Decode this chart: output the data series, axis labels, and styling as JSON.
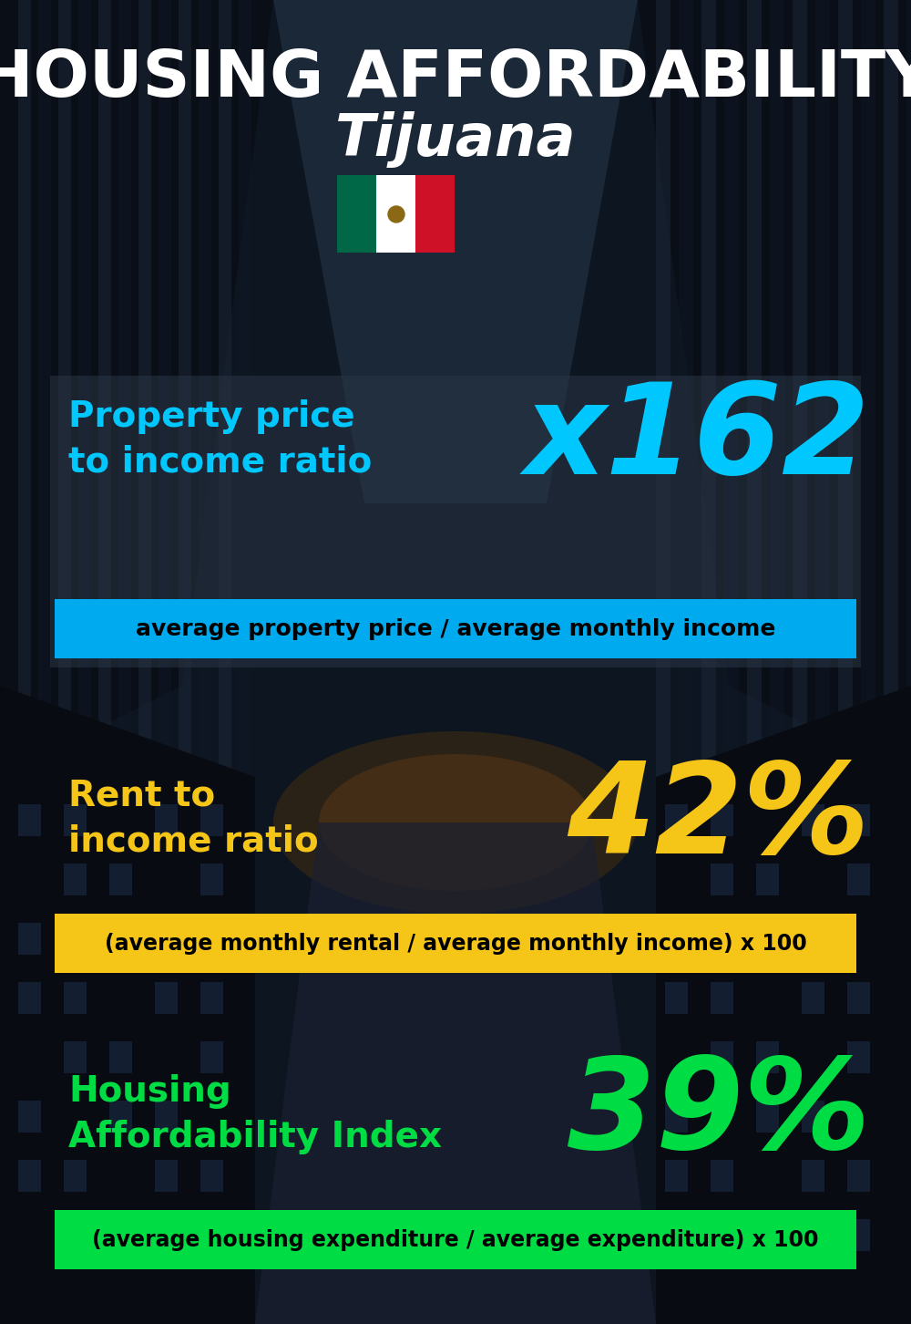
{
  "title_line1": "HOUSING AFFORDABILITY",
  "title_line2": "Tijuana",
  "bg_color": "#0d1520",
  "section1_label": "Property price\nto income ratio",
  "section1_value": "x162",
  "section1_label_color": "#00c8ff",
  "section1_value_color": "#00c8ff",
  "section1_formula": "average property price / average monthly income",
  "section1_formula_bg": "#00aaee",
  "section2_label": "Rent to\nincome ratio",
  "section2_value": "42%",
  "section2_label_color": "#f5c518",
  "section2_value_color": "#f5c518",
  "section2_formula": "(average monthly rental / average monthly income) x 100",
  "section2_formula_bg": "#f5c518",
  "section3_label": "Housing\nAffordability Index",
  "section3_value": "39%",
  "section3_label_color": "#00dd44",
  "section3_value_color": "#00dd44",
  "section3_formula": "(average housing expenditure / average expenditure) x 100",
  "section3_formula_bg": "#00dd44",
  "title_color": "#ffffff",
  "subtitle_color": "#ffffff",
  "formula_text_color": "#000000",
  "panel1_color": "#2a3545",
  "panel1_alpha": 0.6
}
